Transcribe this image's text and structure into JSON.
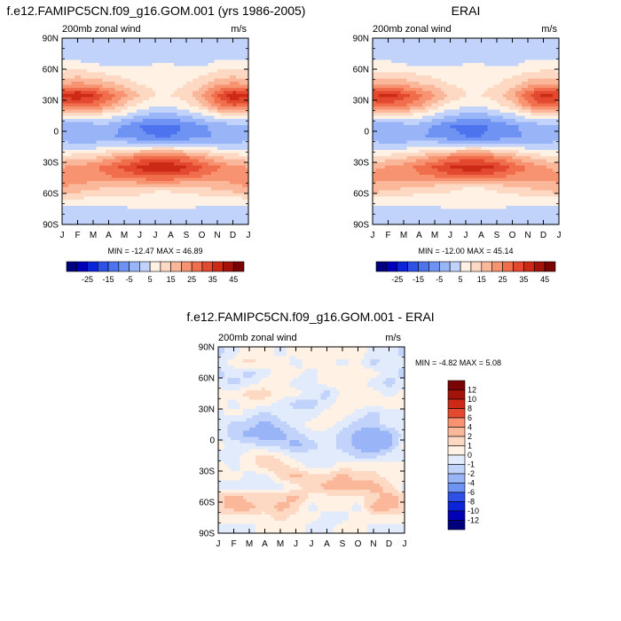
{
  "palette": {
    "blue_to_red": [
      "#00007f",
      "#0000b8",
      "#0b24d9",
      "#2f50e6",
      "#4d73ee",
      "#6f93f3",
      "#99b4f7",
      "#c1d3fa",
      "#e2ebfc",
      "#fff1e4",
      "#fdd8c2",
      "#fbb799",
      "#f79370",
      "#f06e4c",
      "#e3492e",
      "#cc2a17",
      "#a31309",
      "#7a0403"
    ],
    "background": "#ffffff"
  },
  "figure": {
    "panels": [
      {
        "title": "f.e12.FAMIPC5CN.f09_g16.GOM.001 (yrs 1986-2005)",
        "left_label": "200mb zonal wind",
        "right_label": "m/s",
        "stats": "MIN = -12.47 MAX =  46.89",
        "colorbar_labels": [
          "-25",
          "-15",
          "-5",
          "5",
          "15",
          "25",
          "35",
          "45"
        ]
      },
      {
        "title": "ERAI",
        "left_label": "200mb zonal wind",
        "right_label": "m/s",
        "stats": "MIN = -12.00 MAX =  45.14",
        "colorbar_labels": [
          "-25",
          "-15",
          "-5",
          "5",
          "15",
          "25",
          "35",
          "45"
        ]
      },
      {
        "title": "f.e12.FAMIPC5CN.f09_g16.GOM.001 - ERAI",
        "left_label": "200mb zonal wind",
        "right_label": "m/s",
        "stats": "MIN =  -4.82 MAX =   5.08",
        "colorbar_labels": [
          "12",
          "10",
          "8",
          "6",
          "4",
          "2",
          "1",
          "0",
          "-1",
          "-2",
          "-4",
          "-6",
          "-8",
          "-10",
          "-12"
        ]
      }
    ]
  },
  "chart_data": [
    {
      "type": "heatmap",
      "title": "f.e12.FAMIPC5CN.f09_g16.GOM.001 (yrs 1986-2005)",
      "xlabel": "",
      "ylabel": "",
      "x_ticks": [
        "J",
        "F",
        "M",
        "A",
        "M",
        "J",
        "J",
        "A",
        "S",
        "O",
        "N",
        "D",
        "J"
      ],
      "y_ticks": [
        "90N",
        "60N",
        "30N",
        "0",
        "30S",
        "60S",
        "90S"
      ],
      "ylim": [
        -90,
        90
      ],
      "units": "m/s",
      "min": -12.47,
      "max": 46.89,
      "levels": [
        -30,
        -25,
        -20,
        -15,
        -10,
        -5,
        0,
        5,
        10,
        15,
        20,
        25,
        30,
        35,
        40,
        45
      ],
      "colormap": "blue_to_red",
      "grid": false,
      "latitudes": [
        85,
        75,
        65,
        55,
        45,
        35,
        25,
        15,
        5,
        -5,
        -15,
        -25,
        -35,
        -45,
        -55,
        -65,
        -75,
        -85
      ],
      "z": [
        [
          0,
          0,
          0,
          0,
          1,
          1,
          1,
          1,
          1,
          0,
          0,
          0,
          0
        ],
        [
          3,
          3,
          2,
          2,
          2,
          2,
          2,
          2,
          3,
          3,
          3,
          3,
          3
        ],
        [
          6,
          6,
          5,
          4,
          4,
          4,
          5,
          5,
          4,
          4,
          6,
          7,
          6
        ],
        [
          12,
          13,
          12,
          10,
          8,
          7,
          8,
          8,
          8,
          9,
          12,
          13,
          12
        ],
        [
          20,
          22,
          20,
          17,
          14,
          10,
          9,
          9,
          10,
          14,
          19,
          22,
          20
        ],
        [
          36,
          40,
          35,
          28,
          22,
          15,
          10,
          10,
          12,
          20,
          30,
          40,
          36
        ],
        [
          28,
          29,
          27,
          22,
          14,
          8,
          6,
          6,
          9,
          14,
          24,
          30,
          28
        ],
        [
          9,
          8,
          9,
          7,
          4,
          0,
          -2,
          -2,
          0,
          3,
          7,
          10,
          9
        ],
        [
          -3,
          -3,
          -3,
          -2,
          -6,
          -10,
          -12,
          -12,
          -9,
          -6,
          -3,
          -3,
          -3
        ],
        [
          -2,
          -3,
          -4,
          -4,
          -7,
          -9,
          -10,
          -10,
          -9,
          -7,
          -4,
          -3,
          -2
        ],
        [
          2,
          2,
          3,
          4,
          6,
          6,
          7,
          7,
          6,
          4,
          3,
          2,
          2
        ],
        [
          12,
          13,
          14,
          18,
          22,
          26,
          28,
          28,
          25,
          20,
          16,
          13,
          12
        ],
        [
          20,
          22,
          24,
          28,
          32,
          37,
          40,
          40,
          36,
          30,
          26,
          22,
          20
        ],
        [
          22,
          23,
          22,
          24,
          25,
          27,
          28,
          28,
          26,
          24,
          22,
          22,
          22
        ],
        [
          20,
          18,
          16,
          14,
          12,
          12,
          11,
          11,
          12,
          14,
          16,
          18,
          20
        ],
        [
          10,
          10,
          9,
          9,
          9,
          9,
          8,
          8,
          8,
          8,
          9,
          9,
          10
        ],
        [
          3,
          3,
          3,
          3,
          4,
          5,
          5,
          5,
          5,
          4,
          3,
          3,
          3
        ],
        [
          0,
          0,
          0,
          0,
          1,
          1,
          1,
          1,
          0,
          0,
          0,
          0,
          0
        ]
      ]
    },
    {
      "type": "heatmap",
      "title": "ERAI",
      "xlabel": "",
      "ylabel": "",
      "x_ticks": [
        "J",
        "F",
        "M",
        "A",
        "M",
        "J",
        "J",
        "A",
        "S",
        "O",
        "N",
        "D",
        "J"
      ],
      "y_ticks": [
        "90N",
        "60N",
        "30N",
        "0",
        "30S",
        "60S",
        "90S"
      ],
      "ylim": [
        -90,
        90
      ],
      "units": "m/s",
      "min": -12.0,
      "max": 45.14,
      "levels": [
        -30,
        -25,
        -20,
        -15,
        -10,
        -5,
        0,
        5,
        10,
        15,
        20,
        25,
        30,
        35,
        40,
        45
      ],
      "colormap": "blue_to_red",
      "grid": false,
      "latitudes": [
        85,
        75,
        65,
        55,
        45,
        35,
        25,
        15,
        5,
        -5,
        -15,
        -25,
        -35,
        -45,
        -55,
        -65,
        -75,
        -85
      ],
      "z": [
        [
          0,
          0,
          0,
          0,
          1,
          1,
          1,
          1,
          1,
          0,
          0,
          0,
          0
        ],
        [
          3,
          3,
          2,
          2,
          2,
          2,
          2,
          2,
          3,
          3,
          3,
          3,
          3
        ],
        [
          6,
          6,
          5,
          4,
          4,
          4,
          5,
          5,
          4,
          4,
          6,
          7,
          6
        ],
        [
          12,
          12,
          11,
          10,
          8,
          7,
          8,
          8,
          8,
          9,
          11,
          12,
          12
        ],
        [
          19,
          21,
          19,
          16,
          14,
          10,
          9,
          9,
          10,
          13,
          18,
          21,
          19
        ],
        [
          34,
          38,
          33,
          27,
          21,
          14,
          10,
          10,
          12,
          19,
          29,
          38,
          34
        ],
        [
          27,
          28,
          26,
          21,
          13,
          8,
          6,
          6,
          9,
          13,
          23,
          29,
          27
        ],
        [
          9,
          8,
          9,
          7,
          4,
          0,
          -2,
          -2,
          0,
          3,
          7,
          10,
          9
        ],
        [
          -3,
          -3,
          -3,
          -2,
          -6,
          -10,
          -11,
          -11,
          -9,
          -6,
          -3,
          -3,
          -3
        ],
        [
          -2,
          -3,
          -4,
          -4,
          -7,
          -9,
          -10,
          -10,
          -9,
          -7,
          -4,
          -3,
          -2
        ],
        [
          2,
          2,
          3,
          4,
          6,
          6,
          7,
          7,
          6,
          4,
          3,
          2,
          2
        ],
        [
          12,
          12,
          14,
          17,
          21,
          25,
          27,
          27,
          24,
          20,
          15,
          12,
          12
        ],
        [
          19,
          21,
          23,
          27,
          31,
          36,
          38,
          38,
          35,
          29,
          25,
          21,
          19
        ],
        [
          21,
          22,
          21,
          23,
          24,
          26,
          27,
          27,
          25,
          23,
          21,
          21,
          21
        ],
        [
          19,
          17,
          15,
          13,
          12,
          11,
          10,
          10,
          11,
          13,
          15,
          17,
          19
        ],
        [
          9,
          9,
          8,
          8,
          8,
          8,
          8,
          8,
          8,
          8,
          8,
          9,
          9
        ],
        [
          3,
          3,
          3,
          3,
          4,
          5,
          5,
          5,
          5,
          4,
          3,
          3,
          3
        ],
        [
          0,
          0,
          0,
          0,
          1,
          1,
          1,
          1,
          0,
          0,
          0,
          0,
          0
        ]
      ]
    },
    {
      "type": "heatmap",
      "title": "f.e12.FAMIPC5CN.f09_g16.GOM.001 - ERAI",
      "xlabel": "",
      "ylabel": "",
      "x_ticks": [
        "J",
        "F",
        "M",
        "A",
        "M",
        "J",
        "J",
        "A",
        "S",
        "O",
        "N",
        "D",
        "J"
      ],
      "y_ticks": [
        "90N",
        "60N",
        "30N",
        "0",
        "30S",
        "60S",
        "90S"
      ],
      "ylim": [
        -90,
        90
      ],
      "units": "m/s",
      "min": -4.82,
      "max": 5.08,
      "levels": [
        -12,
        -10,
        -8,
        -6,
        -4,
        -2,
        -1,
        0,
        1,
        2,
        4,
        6,
        8,
        10,
        12
      ],
      "colormap": "blue_to_red",
      "grid": false,
      "latitudes": [
        85,
        75,
        65,
        55,
        45,
        35,
        25,
        15,
        5,
        -5,
        -15,
        -25,
        -35,
        -45,
        -55,
        -65,
        -75,
        -85
      ],
      "z": [
        [
          -1.5,
          -0.5,
          0.5,
          0.5,
          -0.5,
          0.5,
          0.5,
          0.5,
          0.5,
          0.5,
          -0.5,
          -0.5,
          -1.5
        ],
        [
          -0.5,
          0.5,
          1.5,
          0.5,
          0.5,
          -0.5,
          0.5,
          0.5,
          -0.5,
          0.5,
          -1.5,
          -0.5,
          -0.5
        ],
        [
          -1.5,
          -0.5,
          -1.5,
          -0.5,
          0.5,
          0.5,
          -0.5,
          0.5,
          0.5,
          0.5,
          0.5,
          -0.5,
          -1.5
        ],
        [
          -0.5,
          -1.5,
          -0.5,
          0.5,
          0.5,
          -0.5,
          -0.5,
          0.5,
          0.5,
          0.5,
          -0.5,
          -1.5,
          -0.5
        ],
        [
          0.5,
          0.5,
          1.5,
          1.5,
          0.5,
          0.5,
          -0.5,
          -1.5,
          0.5,
          0.5,
          0.5,
          -0.5,
          0.5
        ],
        [
          0.5,
          -0.5,
          0.5,
          0.5,
          -0.5,
          -1.5,
          -1.5,
          -0.5,
          0.5,
          0.5,
          0.5,
          0.5,
          0.5
        ],
        [
          -0.5,
          0.5,
          -0.5,
          -1.5,
          -0.5,
          -0.5,
          -0.5,
          0.5,
          0.5,
          -0.5,
          -1.5,
          -0.5,
          -0.5
        ],
        [
          -0.5,
          -1.5,
          -1.5,
          -2.5,
          -1.5,
          -0.5,
          0.5,
          0.5,
          -0.5,
          -1.5,
          -1.5,
          -0.5,
          -0.5
        ],
        [
          -0.5,
          -1.5,
          -2.5,
          -2.5,
          -2.5,
          -1.5,
          -0.5,
          -0.5,
          -1.5,
          -2.5,
          -3.5,
          -2.5,
          -0.5
        ],
        [
          0.5,
          -0.5,
          -0.5,
          -1.5,
          -1.5,
          -2.5,
          -1.5,
          -0.5,
          -1.5,
          -2.5,
          -3.5,
          -2.5,
          0.5
        ],
        [
          -0.5,
          -0.5,
          0.5,
          1.5,
          0.5,
          -0.5,
          -0.5,
          -0.5,
          -0.5,
          -1.5,
          -1.5,
          -0.5,
          -0.5
        ],
        [
          0.5,
          -0.5,
          0.5,
          1.5,
          1.5,
          0.5,
          -0.5,
          -0.5,
          0.5,
          0.5,
          0.5,
          0.5,
          0.5
        ],
        [
          0.5,
          0.5,
          -0.5,
          -0.5,
          1.5,
          2.5,
          1.5,
          1.5,
          2.5,
          1.5,
          1.5,
          0.5,
          0.5
        ],
        [
          -0.5,
          -0.5,
          -0.5,
          -0.5,
          -0.5,
          0.5,
          1.5,
          2.5,
          2.5,
          2.5,
          2.5,
          1.5,
          -0.5
        ],
        [
          1.5,
          2.5,
          1.5,
          1.5,
          1.5,
          2.5,
          0.5,
          0.5,
          0.5,
          0.5,
          1.5,
          2.5,
          1.5
        ],
        [
          1.5,
          2.5,
          2.5,
          1.5,
          2.5,
          1.5,
          -0.5,
          0.5,
          0.5,
          -0.5,
          2.5,
          2.5,
          1.5
        ],
        [
          0.5,
          0.5,
          0.5,
          0.5,
          1.5,
          0.5,
          0.5,
          -0.5,
          -0.5,
          0.5,
          0.5,
          0.5,
          0.5
        ],
        [
          -0.5,
          -0.5,
          -0.5,
          0.5,
          0.5,
          0.5,
          -0.5,
          -0.5,
          0.5,
          0.5,
          -0.5,
          -0.5,
          -0.5
        ]
      ]
    }
  ]
}
